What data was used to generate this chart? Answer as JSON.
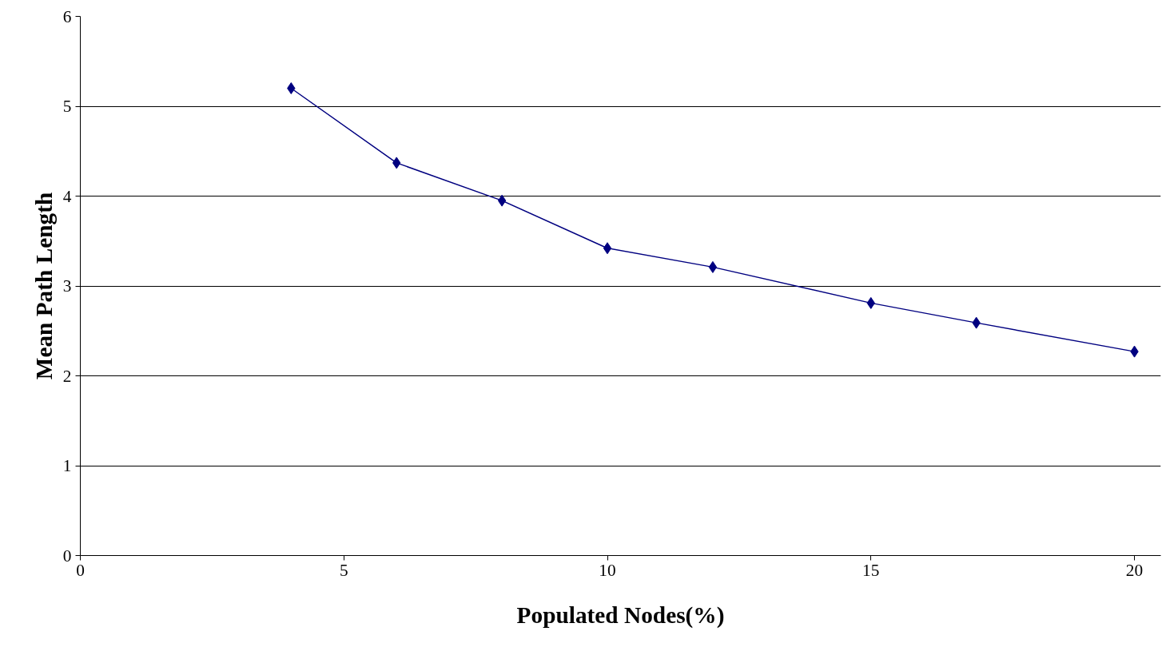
{
  "chart_data": {
    "type": "line",
    "xlabel": "Populated Nodes(%)",
    "ylabel": "Mean Path Length",
    "x": [
      4,
      6,
      8,
      10,
      12,
      15,
      17,
      20
    ],
    "series": [
      {
        "color": "#000080",
        "values": [
          5.2,
          4.37,
          3.95,
          3.42,
          3.21,
          2.81,
          2.59,
          2.27
        ]
      }
    ],
    "xlim": [
      0,
      20.5
    ],
    "ylim": [
      0,
      6
    ],
    "xticks": [
      0,
      5,
      10,
      15,
      20
    ],
    "yticks": [
      0,
      1,
      2,
      3,
      4,
      5,
      6
    ],
    "grid": "y",
    "marker": "diamond",
    "line_style": "solid"
  }
}
